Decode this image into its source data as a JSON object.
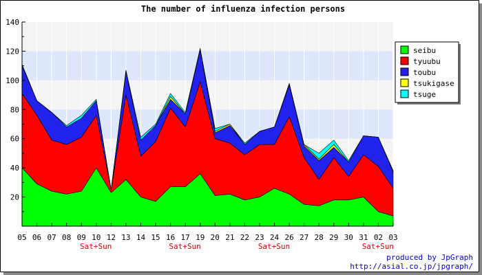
{
  "chart_data": {
    "type": "area",
    "stacked": true,
    "title": "The number of influenza infection persons",
    "xlabel": "",
    "ylabel": "",
    "ylim": [
      0,
      140
    ],
    "yticks": [
      20,
      40,
      60,
      80,
      100,
      120,
      140
    ],
    "categories": [
      "05",
      "06",
      "07",
      "08",
      "09",
      "10",
      "12",
      "13",
      "14",
      "15",
      "16",
      "17",
      "19",
      "20",
      "21",
      "22",
      "23",
      "24",
      "26",
      "27",
      "28",
      "29",
      "30",
      "31",
      "02",
      "03"
    ],
    "weekend_markers": [
      {
        "category": "09",
        "label": "Sat+Sun"
      },
      {
        "category": "16",
        "label": "Sat+Sun"
      },
      {
        "category": "23",
        "label": "Sat+Sun"
      },
      {
        "category": "31",
        "label": "Sat+Sun"
      }
    ],
    "series": [
      {
        "name": "seibu",
        "color": "#00ff00",
        "values": [
          40,
          29,
          24,
          22,
          24,
          40,
          23,
          32,
          20,
          17,
          27,
          27,
          36,
          21,
          22,
          18,
          20,
          26,
          22,
          15,
          14,
          18,
          18,
          20,
          10,
          7
        ]
      },
      {
        "name": "tyuubu",
        "color": "#ff0000",
        "values": [
          51,
          47,
          35,
          34,
          37,
          36,
          2,
          58,
          28,
          41,
          54,
          41,
          63,
          39,
          35,
          31,
          36,
          30,
          53,
          32,
          18,
          29,
          16,
          29,
          31,
          19
        ]
      },
      {
        "name": "toubu",
        "color": "#2222ee",
        "values": [
          19,
          10,
          19,
          12,
          13,
          10,
          0,
          16,
          11,
          11,
          6,
          9,
          22,
          4,
          12,
          7,
          9,
          12,
          22,
          8,
          13,
          7,
          10,
          13,
          20,
          11
        ]
      },
      {
        "name": "tsukigase",
        "color": "#ffff00",
        "values": [
          0,
          0,
          0,
          0,
          0,
          0,
          0,
          0,
          0,
          0,
          2,
          0,
          0,
          1,
          1,
          0,
          0,
          0,
          0,
          1,
          1,
          2,
          0,
          0,
          0,
          1
        ]
      },
      {
        "name": "tsuge",
        "color": "#00ffff",
        "values": [
          1,
          0,
          0,
          1,
          2,
          1,
          0,
          1,
          2,
          1,
          2,
          1,
          1,
          2,
          0,
          1,
          0,
          0,
          1,
          0,
          4,
          3,
          1,
          0,
          0,
          0
        ]
      }
    ],
    "bands": [
      {
        "from": 60,
        "to": 80,
        "color": "#dde6fb"
      },
      {
        "from": 100,
        "to": 120,
        "color": "#dde6fb"
      }
    ],
    "grid": true,
    "legend_position": "right"
  },
  "credits": {
    "line1": "produced by JpGraph",
    "line2": "http://asial.co.jp/jpgraph/"
  },
  "colors": {
    "background": "#ffffff",
    "plot_background": "#f4f4f4",
    "axis": "#000000",
    "weekend_label": "#dd0000",
    "credits": "#0000cc"
  }
}
